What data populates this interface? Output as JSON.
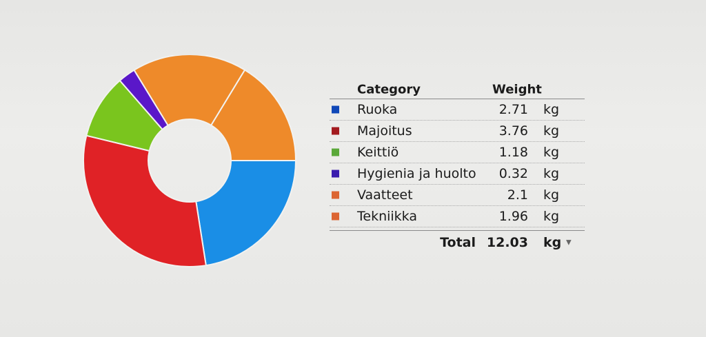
{
  "chart_data": {
    "type": "pie",
    "donut": true,
    "categories": [
      "Ruoka",
      "Majoitus",
      "Keittiö",
      "Hygienia ja huolto",
      "Vaatteet",
      "Tekniikka"
    ],
    "values": [
      2.71,
      3.76,
      1.18,
      0.32,
      2.1,
      1.96
    ],
    "colors": [
      "#1a8ee6",
      "#e02226",
      "#7ac51e",
      "#5a17c9",
      "#ee8a2a",
      "#ee8a2a"
    ]
  },
  "table": {
    "header": {
      "category": "Category",
      "weight": "Weight"
    },
    "rows": [
      {
        "name": "Ruoka",
        "value": "2.71",
        "unit": "kg",
        "color": "#1048b8"
      },
      {
        "name": "Majoitus",
        "value": "3.76",
        "unit": "kg",
        "color": "#a31a1f"
      },
      {
        "name": "Keittiö",
        "value": "1.18",
        "unit": "kg",
        "color": "#5aa839"
      },
      {
        "name": "Hygienia ja huolto",
        "value": "0.32",
        "unit": "kg",
        "color": "#3a1cae"
      },
      {
        "name": "Vaatteet",
        "value": "2.1",
        "unit": "kg",
        "color": "#dc6532"
      },
      {
        "name": "Tekniikka",
        "value": "1.96",
        "unit": "kg",
        "color": "#dc6532"
      }
    ],
    "total": {
      "label": "Total",
      "value": "12.03",
      "unit": "kg",
      "dropdown_icon": "▼"
    }
  }
}
